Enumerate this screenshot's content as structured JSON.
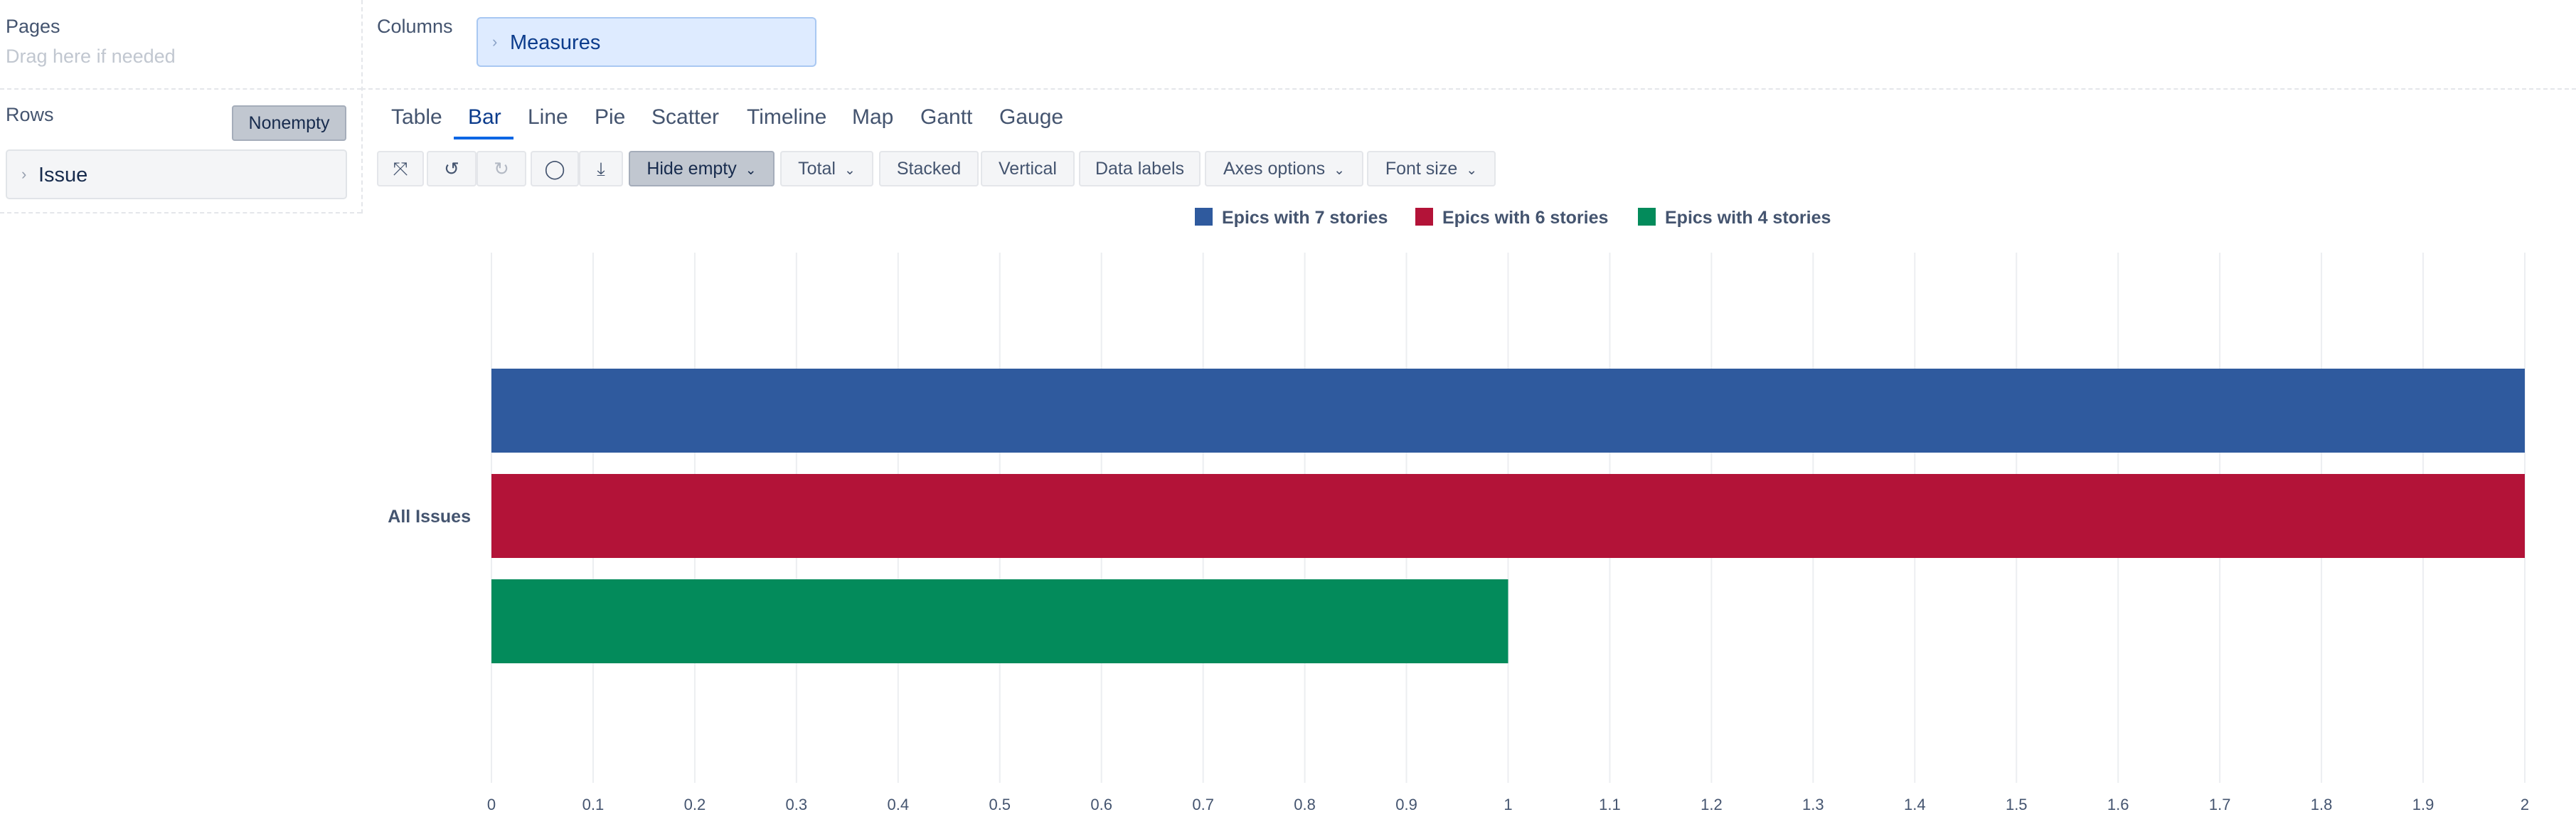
{
  "pages": {
    "title": "Pages",
    "hint": "Drag here if needed"
  },
  "rows": {
    "title": "Rows",
    "nonempty_label": "Nonempty",
    "dimension": "Issue"
  },
  "columns": {
    "title": "Columns",
    "dimension": "Measures"
  },
  "tabs": [
    {
      "label": "Table",
      "active": false
    },
    {
      "label": "Bar",
      "active": true
    },
    {
      "label": "Line",
      "active": false
    },
    {
      "label": "Pie",
      "active": false
    },
    {
      "label": "Scatter",
      "active": false
    },
    {
      "label": "Timeline",
      "active": false
    },
    {
      "label": "Map",
      "active": false
    },
    {
      "label": "Gantt",
      "active": false
    },
    {
      "label": "Gauge",
      "active": false
    }
  ],
  "toolbar": {
    "icons": [
      "fullscreen-icon",
      "undo-icon",
      "redo-icon",
      "comment-icon",
      "download-icon"
    ],
    "hide_empty": "Hide empty",
    "total": "Total",
    "stacked": "Stacked",
    "vertical": "Vertical",
    "data_labels": "Data labels",
    "axes_options": "Axes options",
    "font_size": "Font size"
  },
  "chart_data": {
    "type": "bar",
    "orientation": "horizontal",
    "categories": [
      "All Issues"
    ],
    "series": [
      {
        "name": "Epics with 7 stories",
        "color": "#2f5a9e",
        "values": [
          2
        ]
      },
      {
        "name": "Epics with 6 stories",
        "color": "#b31338",
        "values": [
          2
        ]
      },
      {
        "name": "Epics with 4 stories",
        "color": "#038b5b",
        "values": [
          1
        ]
      }
    ],
    "xlim": [
      0,
      2
    ],
    "xticks": [
      "0",
      "0.1",
      "0.2",
      "0.3",
      "0.4",
      "0.5",
      "0.6",
      "0.7",
      "0.8",
      "0.9",
      "1",
      "1.1",
      "1.2",
      "1.3",
      "1.4",
      "1.5",
      "1.6",
      "1.7",
      "1.8",
      "1.9",
      "2"
    ],
    "legend_position": "top",
    "grid": true
  }
}
